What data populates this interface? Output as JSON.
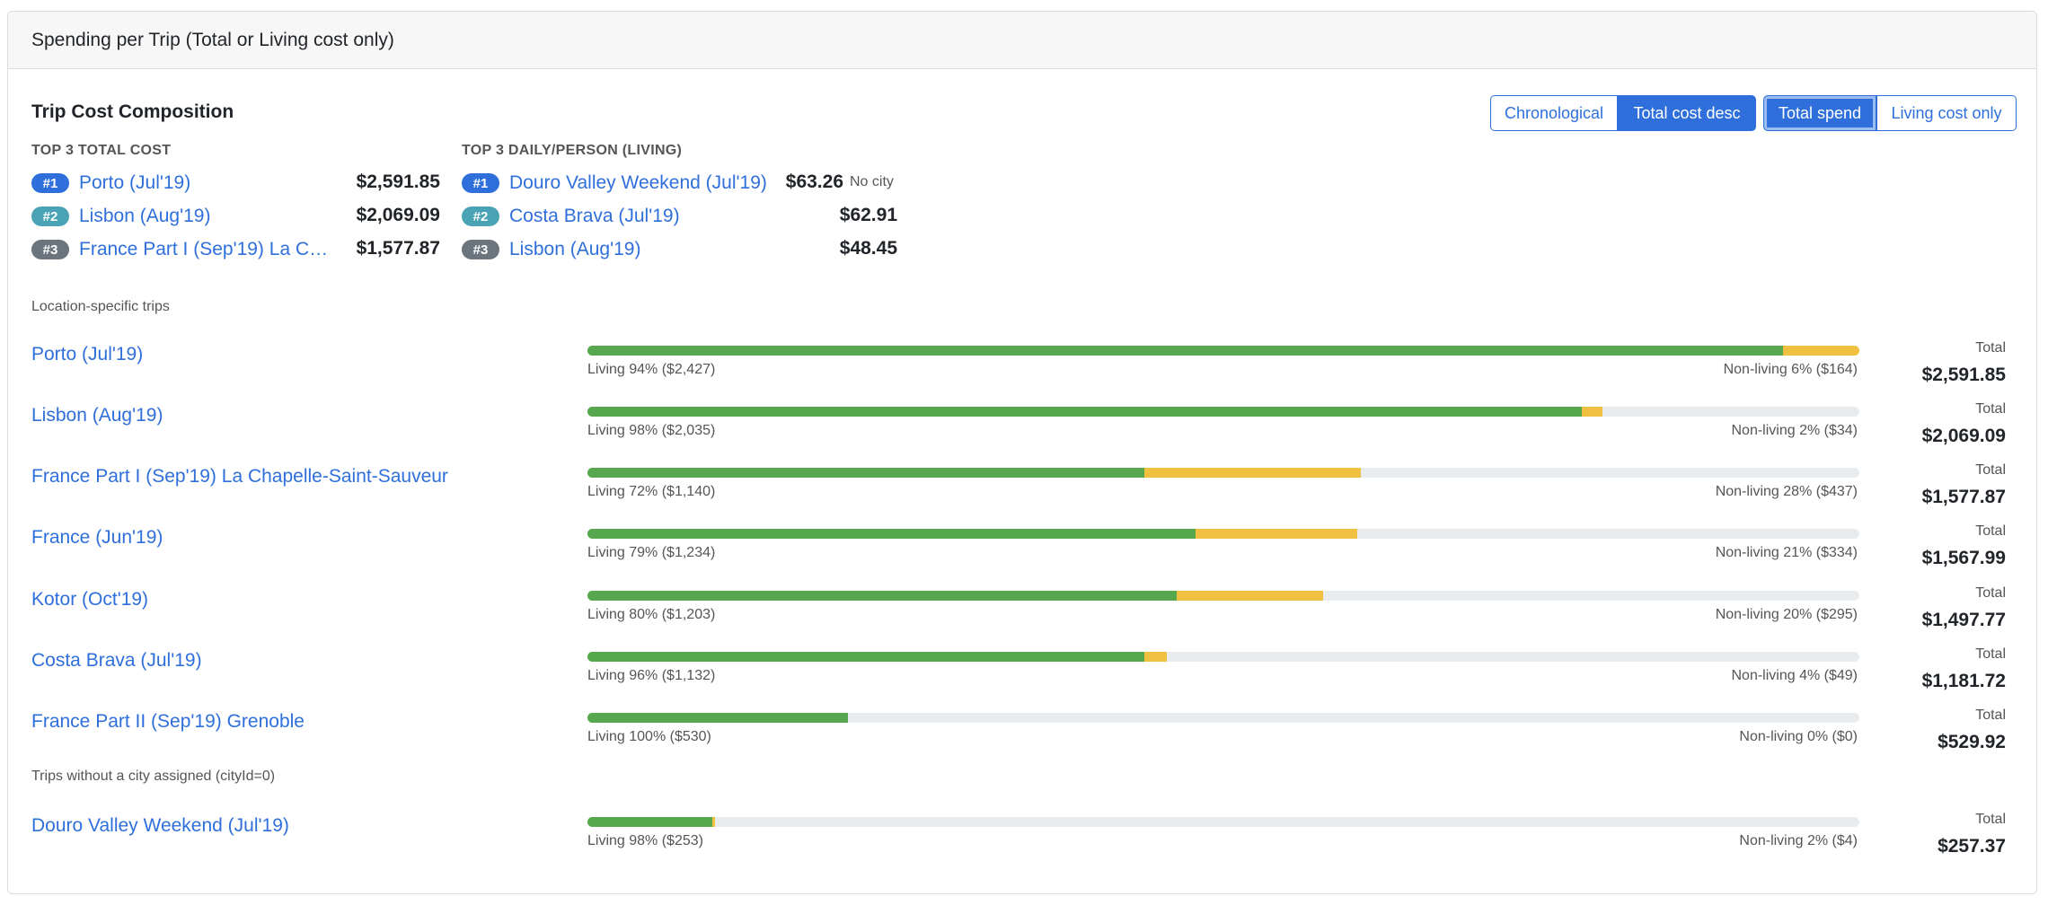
{
  "header": {
    "title": "Spending per Trip (Total or Living cost only)"
  },
  "section": {
    "title": "Trip Cost Composition"
  },
  "sort_buttons": [
    "Chronological",
    "Total cost desc"
  ],
  "mode_buttons": [
    "Total spend",
    "Living cost only"
  ],
  "top_total": {
    "heading": "TOP 3 TOTAL COST",
    "items": [
      {
        "rank": "#1",
        "name": "Porto (Jul'19)",
        "amount": "$2,591.85"
      },
      {
        "rank": "#2",
        "name": "Lisbon (Aug'19)",
        "amount": "$2,069.09"
      },
      {
        "rank": "#3",
        "name": "France Part I (Sep'19) La Chapelle-Saint-Sauveur",
        "amount": "$1,577.87"
      }
    ]
  },
  "top_daily": {
    "heading": "TOP 3 DAILY/PERSON (LIVING)",
    "items": [
      {
        "rank": "#1",
        "name": "Douro Valley Weekend (Jul'19)",
        "amount": "$63.26",
        "note": "No city"
      },
      {
        "rank": "#2",
        "name": "Costa Brava (Jul'19)",
        "amount": "$62.91",
        "note": ""
      },
      {
        "rank": "#3",
        "name": "Lisbon (Aug'19)",
        "amount": "$48.45",
        "note": ""
      }
    ]
  },
  "groups": {
    "location_label": "Location-specific trips",
    "nocity_label": "Trips without a city assigned (cityId=0)"
  },
  "total_label": "Total",
  "colors": {
    "living": "#57a74e",
    "non_living": "#f0c040",
    "track": "#e9ecef",
    "link": "#2f6fdb"
  },
  "trips": [
    {
      "name": "Porto (Jul'19)",
      "living_label": "Living 94% ($2,427)",
      "nonliving_label": "Non-living 6% ($164)",
      "total": "$2,591.85",
      "living_frac": 0.94,
      "nonliving_frac": 0.06
    },
    {
      "name": "Lisbon (Aug'19)",
      "living_label": "Living 98% ($2,035)",
      "nonliving_label": "Non-living 2% ($34)",
      "total": "$2,069.09",
      "living_frac": 0.782,
      "nonliving_frac": 0.016
    },
    {
      "name": "France Part I (Sep'19) La Chapelle-Saint-Sauveur",
      "living_label": "Living 72% ($1,140)",
      "nonliving_label": "Non-living 28% ($437)",
      "total": "$1,577.87",
      "living_frac": 0.438,
      "nonliving_frac": 0.17
    },
    {
      "name": "France (Jun'19)",
      "living_label": "Living 79% ($1,234)",
      "nonliving_label": "Non-living 21% ($334)",
      "total": "$1,567.99",
      "living_frac": 0.478,
      "nonliving_frac": 0.127
    },
    {
      "name": "Kotor (Oct'19)",
      "living_label": "Living 80% ($1,203)",
      "nonliving_label": "Non-living 20% ($295)",
      "total": "$1,497.77",
      "living_frac": 0.463,
      "nonliving_frac": 0.115
    },
    {
      "name": "Costa Brava (Jul'19)",
      "living_label": "Living 96% ($1,132)",
      "nonliving_label": "Non-living 4% ($49)",
      "total": "$1,181.72",
      "living_frac": 0.438,
      "nonliving_frac": 0.018
    },
    {
      "name": "France Part II (Sep'19) Grenoble",
      "living_label": "Living 100% ($530)",
      "nonliving_label": "Non-living 0% ($0)",
      "total": "$529.92",
      "living_frac": 0.205,
      "nonliving_frac": 0.0
    },
    {
      "name": "Douro Valley Weekend (Jul'19)",
      "living_label": "Living 98% ($253)",
      "nonliving_label": "Non-living 2% ($4)",
      "total": "$257.37",
      "living_frac": 0.098,
      "nonliving_frac": 0.002
    }
  ]
}
